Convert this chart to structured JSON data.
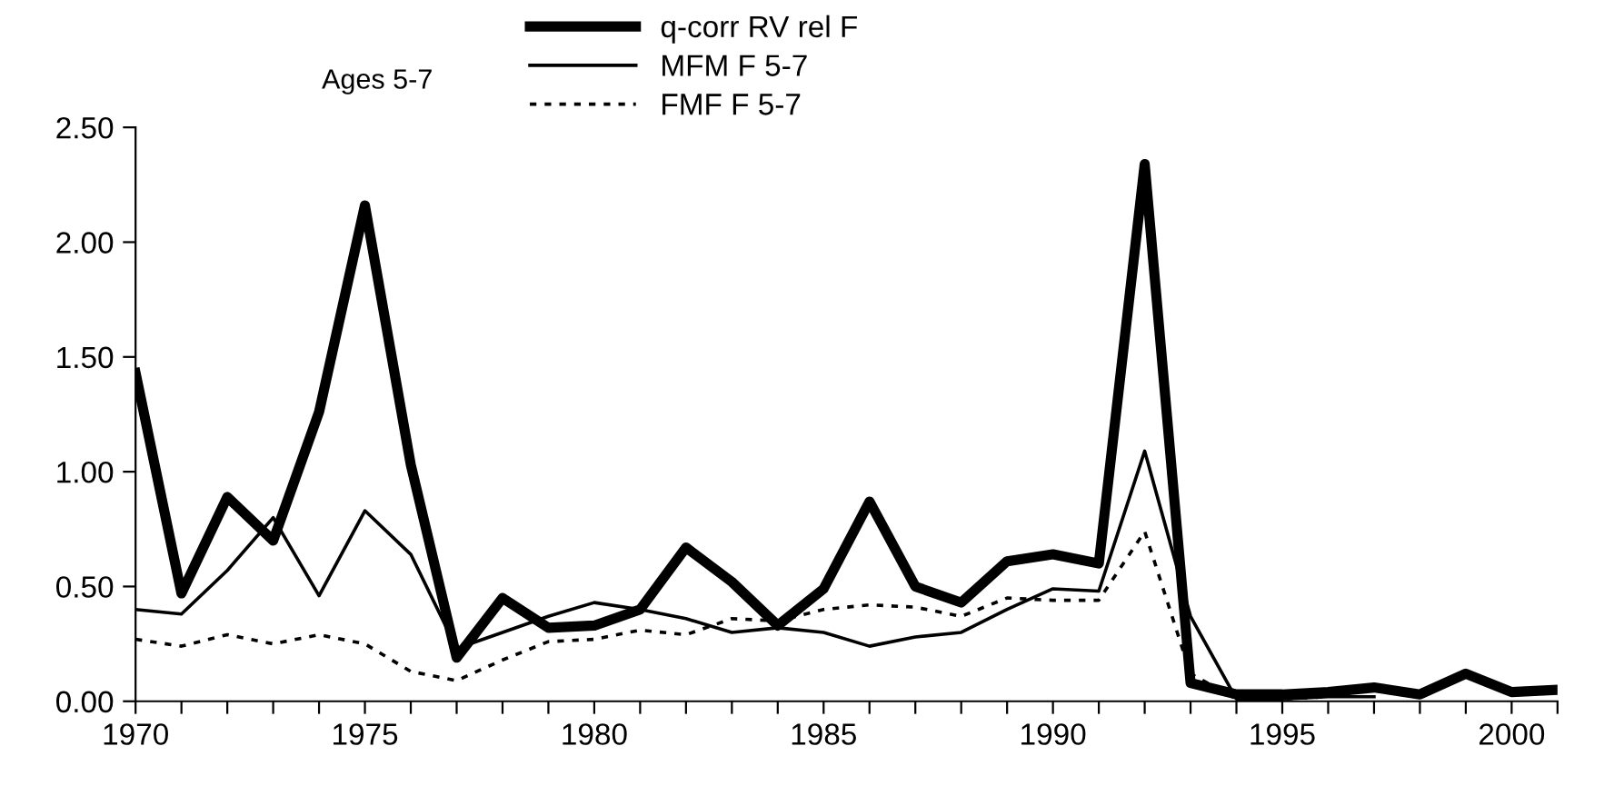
{
  "chart_data": {
    "type": "line",
    "title": "Ages 5-7",
    "x": [
      1970,
      1971,
      1972,
      1973,
      1974,
      1975,
      1976,
      1977,
      1978,
      1979,
      1980,
      1981,
      1982,
      1983,
      1984,
      1985,
      1986,
      1987,
      1988,
      1989,
      1990,
      1991,
      1992,
      1993,
      1994,
      1995,
      1996,
      1997,
      1998,
      1999,
      2000,
      2001
    ],
    "series": [
      {
        "name": "q-corr RV rel F",
        "color": "#000000",
        "line_style": "solid",
        "values": [
          1.43,
          0.47,
          0.89,
          0.7,
          1.26,
          2.16,
          1.03,
          0.19,
          0.45,
          0.32,
          0.33,
          0.4,
          0.67,
          0.52,
          0.33,
          0.49,
          0.87,
          0.5,
          0.43,
          0.61,
          0.64,
          0.6,
          2.34,
          0.08,
          0.03,
          0.03,
          0.04,
          0.06,
          0.03,
          0.12,
          0.04,
          0.05
        ]
      },
      {
        "name": "MFM F 5-7",
        "color": "#000000",
        "line_style": "solid",
        "values": [
          0.4,
          0.38,
          0.57,
          0.8,
          0.46,
          0.83,
          0.64,
          0.23,
          0.3,
          0.37,
          0.43,
          0.4,
          0.36,
          0.3,
          0.32,
          0.3,
          0.24,
          0.28,
          0.3,
          0.4,
          0.49,
          0.48,
          1.09,
          0.37,
          0.01,
          0.01,
          0.02,
          0.02,
          null,
          null,
          null,
          null
        ]
      },
      {
        "name": "FMF F 5-7",
        "color": "#000000",
        "line_style": "dotted",
        "values": [
          0.27,
          0.24,
          0.29,
          0.25,
          0.29,
          0.25,
          0.13,
          0.09,
          0.18,
          0.26,
          0.27,
          0.31,
          0.29,
          0.36,
          0.35,
          0.4,
          0.42,
          0.41,
          0.37,
          0.45,
          0.44,
          0.44,
          0.74,
          0.12,
          0.01,
          0.01,
          0.02,
          null,
          null,
          null,
          null,
          null
        ]
      }
    ],
    "xlim": [
      1970,
      2001
    ],
    "xticks": [
      1970,
      {
        "value": 1971,
        "label": null
      },
      {
        "value": 1972,
        "label": null
      },
      {
        "value": 1973,
        "label": null
      },
      {
        "value": 1974,
        "label": null
      },
      1975,
      {
        "value": 1976,
        "label": null
      },
      {
        "value": 1977,
        "label": null
      },
      {
        "value": 1978,
        "label": null
      },
      {
        "value": 1979,
        "label": null
      },
      1980,
      {
        "value": 1981,
        "label": null
      },
      {
        "value": 1982,
        "label": null
      },
      {
        "value": 1983,
        "label": null
      },
      {
        "value": 1984,
        "label": null
      },
      1985,
      {
        "value": 1986,
        "label": null
      },
      {
        "value": 1987,
        "label": null
      },
      {
        "value": 1988,
        "label": null
      },
      {
        "value": 1989,
        "label": null
      },
      1990,
      {
        "value": 1991,
        "label": null
      },
      {
        "value": 1992,
        "label": null
      },
      {
        "value": 1993,
        "label": null
      },
      {
        "value": 1994,
        "label": null
      },
      1995,
      {
        "value": 1996,
        "label": null
      },
      {
        "value": 1997,
        "label": null
      },
      {
        "value": 1998,
        "label": null
      },
      {
        "value": 1999,
        "label": null
      },
      2000,
      {
        "value": 2001,
        "label": null
      }
    ],
    "ylim": [
      0,
      2.5
    ],
    "yticks": [
      {
        "value": 0,
        "label": "0.00"
      },
      {
        "value": 0.5,
        "label": "0.50"
      },
      {
        "value": 1.0,
        "label": "1.00"
      },
      {
        "value": 1.5,
        "label": "1.50"
      },
      {
        "value": 2.0,
        "label": "2.00"
      },
      {
        "value": 2.5,
        "label": "2.50"
      }
    ],
    "grid": false,
    "legend": "top",
    "marker": "none"
  }
}
